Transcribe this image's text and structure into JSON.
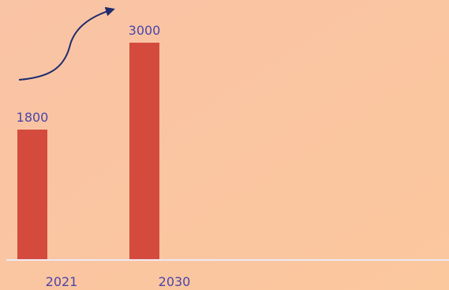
{
  "chart_data": {
    "type": "bar",
    "title": "",
    "xlabel": "",
    "ylabel": "",
    "categories": [
      "2021",
      "2030"
    ],
    "values": [
      1800,
      3000
    ],
    "data_labels": [
      "1800",
      "3000"
    ],
    "ylim": [
      0,
      3000
    ],
    "grid": false,
    "legend": "none",
    "annotations": [
      {
        "type": "curved-arrow",
        "direction": "up-right",
        "from_category": "2021",
        "to_category": "2030"
      }
    ]
  },
  "colors": {
    "background_start": "#F9C3A5",
    "background_end": "#FBC79D",
    "bar": "#D44B3E",
    "label_text": "#4B45A8",
    "arrow": "#1F2C6E",
    "axis_line": "#EDE9F5"
  }
}
